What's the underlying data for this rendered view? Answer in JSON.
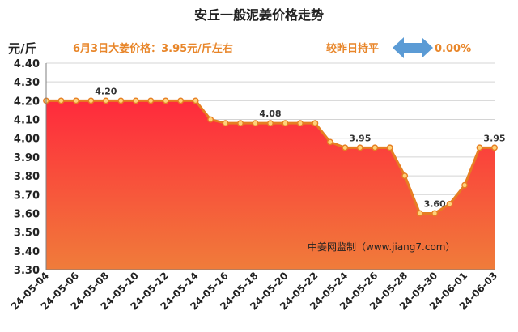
{
  "header": {
    "title": "安丘一般泥姜价格走势",
    "unit": "元/斤",
    "price_note": "6月3日大姜价格：3.95元/斤左右",
    "compare_text": "较昨日持平",
    "change_text": "0.00%",
    "arrow_icon": "left-right-arrow-icon"
  },
  "source_note": "中姜网监制（www.jiang7.com）",
  "colors": {
    "accent": "#E8862A",
    "arrow": "#5B9BD5",
    "line": "#E67E22",
    "fill_top": "#FF2A3C",
    "fill_bottom": "#F07C3A"
  },
  "chart_data": {
    "type": "area",
    "title": "安丘一般泥姜价格走势",
    "ylabel": "元/斤",
    "xlabel": "",
    "ylim": [
      3.3,
      4.4
    ],
    "y_ticks": [
      "3.30",
      "3.40",
      "3.50",
      "3.60",
      "3.70",
      "3.80",
      "3.90",
      "4.00",
      "4.10",
      "4.20",
      "4.30",
      "4.40"
    ],
    "grid": "horizontal",
    "x": [
      "24-05-04",
      "24-05-05",
      "24-05-06",
      "24-05-07",
      "24-05-08",
      "24-05-09",
      "24-05-10",
      "24-05-11",
      "24-05-12",
      "24-05-13",
      "24-05-14",
      "24-05-15",
      "24-05-16",
      "24-05-17",
      "24-05-18",
      "24-05-19",
      "24-05-20",
      "24-05-21",
      "24-05-22",
      "24-05-23",
      "24-05-24",
      "24-05-25",
      "24-05-26",
      "24-05-27",
      "24-05-28",
      "24-05-29",
      "24-05-30",
      "24-05-31",
      "24-06-01",
      "24-06-02",
      "24-06-03"
    ],
    "x_tick_labels": [
      "24-05-04",
      "24-05-06",
      "24-05-08",
      "24-05-10",
      "24-05-12",
      "24-05-14",
      "24-05-16",
      "24-05-18",
      "24-05-20",
      "24-05-22",
      "24-05-24",
      "24-05-26",
      "24-05-28",
      "24-05-30",
      "24-06-01",
      "24-06-03"
    ],
    "values": [
      4.2,
      4.2,
      4.2,
      4.2,
      4.2,
      4.2,
      4.2,
      4.2,
      4.2,
      4.2,
      4.2,
      4.1,
      4.08,
      4.08,
      4.08,
      4.08,
      4.08,
      4.08,
      4.08,
      3.98,
      3.95,
      3.95,
      3.95,
      3.95,
      3.8,
      3.6,
      3.6,
      3.65,
      3.75,
      3.95,
      3.95
    ],
    "data_labels": [
      {
        "index": 4,
        "text": "4.20"
      },
      {
        "index": 15,
        "text": "4.08"
      },
      {
        "index": 21,
        "text": "3.95"
      },
      {
        "index": 26,
        "text": "3.60"
      },
      {
        "index": 30,
        "text": "3.95"
      }
    ]
  }
}
